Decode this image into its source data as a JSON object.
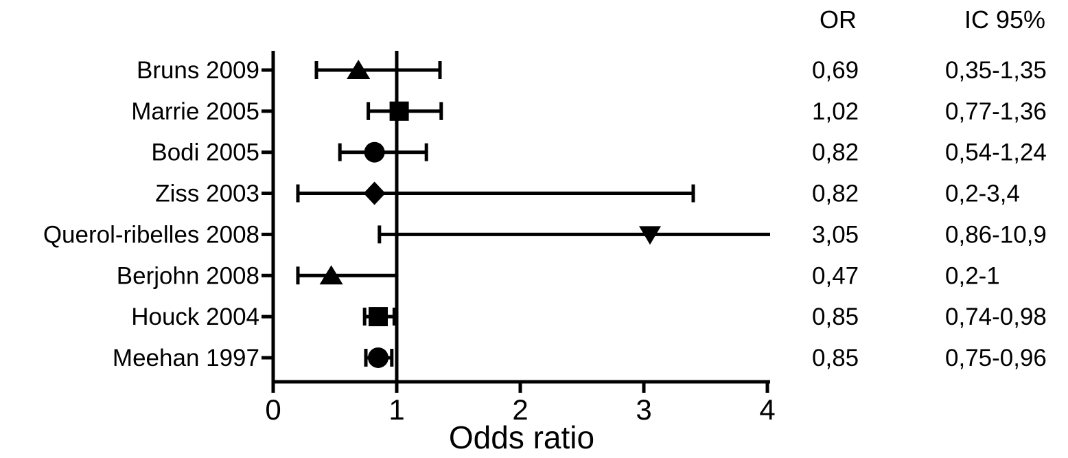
{
  "table": {
    "or_header": "OR",
    "ci_header": "IC 95%"
  },
  "chart_data": {
    "type": "forest",
    "title": "",
    "xlabel": "Odds ratio",
    "ylabel": "",
    "xlim": [
      0,
      4
    ],
    "xticks": [
      "0",
      "1",
      "2",
      "3",
      "4"
    ],
    "reference_line_x": 1,
    "grid": false,
    "colors": {
      "foreground": "#000000",
      "background": "#ffffff"
    },
    "studies": [
      {
        "label": "Bruns 2009",
        "marker": "triangle-up",
        "or": 0.69,
        "ci_low": 0.35,
        "ci_high": 1.35,
        "or_text": "0,69",
        "ci_text": "0,35-1,35"
      },
      {
        "label": "Marrie 2005",
        "marker": "square",
        "or": 1.02,
        "ci_low": 0.77,
        "ci_high": 1.36,
        "or_text": "1,02",
        "ci_text": "0,77-1,36"
      },
      {
        "label": "Bodi 2005",
        "marker": "circle",
        "or": 0.82,
        "ci_low": 0.54,
        "ci_high": 1.24,
        "or_text": "0,82",
        "ci_text": "0,54-1,24"
      },
      {
        "label": "Ziss 2003",
        "marker": "diamond",
        "or": 0.82,
        "ci_low": 0.2,
        "ci_high": 3.4,
        "or_text": "0,82",
        "ci_text": "0,2-3,4"
      },
      {
        "label": "Querol-ribelles 2008",
        "marker": "triangle-down",
        "or": 3.05,
        "ci_low": 0.86,
        "ci_high": 10.9,
        "or_text": "3,05",
        "ci_text": "0,86-10,9"
      },
      {
        "label": "Berjohn 2008",
        "marker": "triangle-up",
        "or": 0.47,
        "ci_low": 0.2,
        "ci_high": 1.0,
        "or_text": "0,47",
        "ci_text": "0,2-1"
      },
      {
        "label": "Houck 2004",
        "marker": "square",
        "or": 0.85,
        "ci_low": 0.74,
        "ci_high": 0.98,
        "or_text": "0,85",
        "ci_text": "0,74-0,98"
      },
      {
        "label": "Meehan 1997",
        "marker": "circle",
        "or": 0.85,
        "ci_low": 0.75,
        "ci_high": 0.96,
        "or_text": "0,85",
        "ci_text": "0,75-0,96"
      }
    ]
  }
}
